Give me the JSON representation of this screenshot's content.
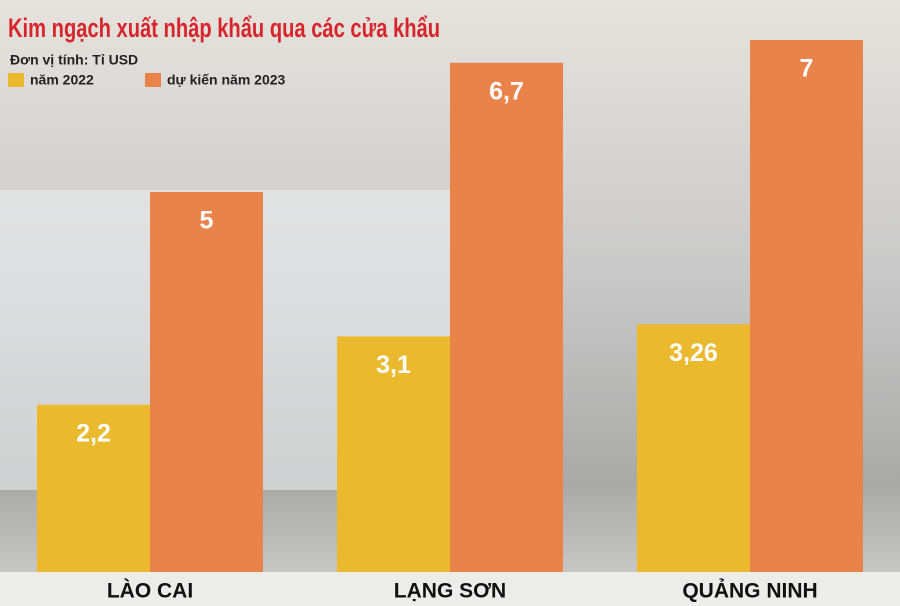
{
  "chart_data": {
    "type": "bar",
    "title": "Kim ngạch xuất nhập khẩu qua các cửa khẩu",
    "subtitle": "Đơn vị tính: Tỉ USD",
    "categories": [
      "LÀO CAI",
      "LẠNG SƠN",
      "QUẢNG NINH"
    ],
    "series": [
      {
        "name": "năm 2022",
        "color": "#ebb92d",
        "values": [
          2.2,
          3.1,
          3.26
        ],
        "value_labels": [
          "2,2",
          "3,1",
          "3,26"
        ]
      },
      {
        "name": "dự kiến năm 2023",
        "color": "#e9834a",
        "values": [
          5,
          6.7,
          7
        ],
        "value_labels": [
          "5",
          "6,7",
          "7"
        ]
      }
    ]
  }
}
